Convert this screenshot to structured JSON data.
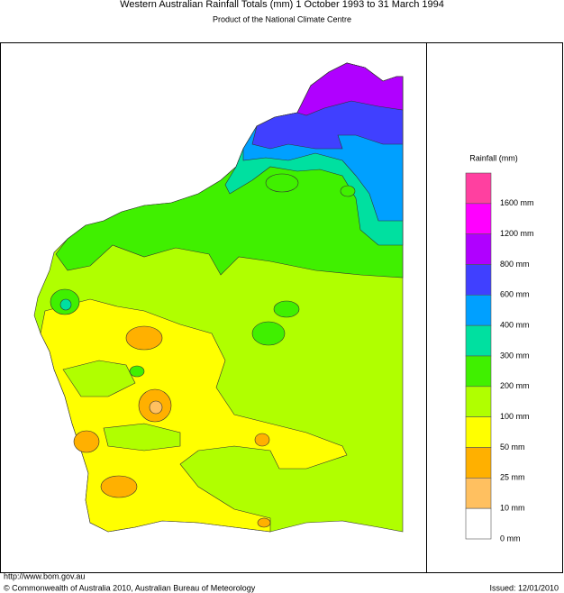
{
  "header": {
    "title": "Western Australian Rainfall Totals (mm) 1 October 1993 to 31 March 1994",
    "subtitle": "Product of the National Climate Centre"
  },
  "legend": {
    "title": "Rainfall (mm)",
    "items": [
      {
        "label": "1600 mm",
        "color": "#ff40a0"
      },
      {
        "label": "1200 mm",
        "color": "#ff00ff"
      },
      {
        "label": "800 mm",
        "color": "#b000ff"
      },
      {
        "label": "600 mm",
        "color": "#4040ff"
      },
      {
        "label": "400 mm",
        "color": "#00a0ff"
      },
      {
        "label": "300 mm",
        "color": "#00e0a0"
      },
      {
        "label": "200 mm",
        "color": "#40f000"
      },
      {
        "label": "100 mm",
        "color": "#b0ff00"
      },
      {
        "label": "50 mm",
        "color": "#ffff00"
      },
      {
        "label": "25 mm",
        "color": "#ffb000"
      },
      {
        "label": "10 mm",
        "color": "#ffc060"
      },
      {
        "label": "0 mm",
        "color": "#ffffff"
      }
    ]
  },
  "footer": {
    "url": "http://www.bom.gov.au",
    "copyright": "© Commonwealth of Australia 2010, Australian Bureau of Meteorology",
    "issued": "Issued: 12/01/2010"
  }
}
